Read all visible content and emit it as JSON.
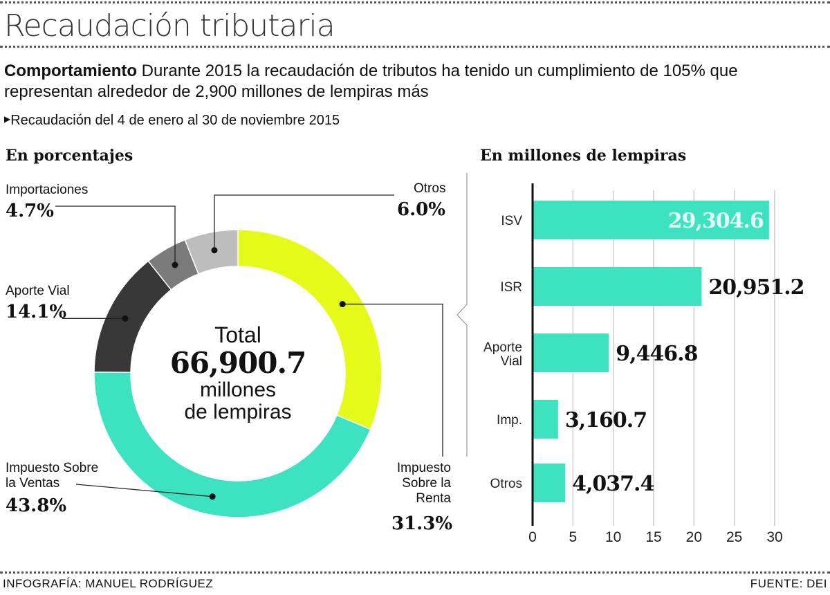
{
  "header": {
    "title": "Recaudación tributaria",
    "lede_bold": "Comportamiento",
    "lede_text": " Durante 2015 la recaudación de tributos ha tenido un cumplimiento de 105% que representan alrededor de 2,900 millones de lempiras más",
    "subtitle": "Recaudación del 4 de enero al 30 de noviembre 2015"
  },
  "chart_data": [
    {
      "type": "pie",
      "title": "En porcentajes",
      "center_label": {
        "line1": "Total",
        "value": "66,900.7",
        "line2": "millones",
        "line3": "de lempiras"
      },
      "slices": [
        {
          "label": "Impuesto Sobre la Renta",
          "label_lines": [
            "Impuesto",
            "Sobre la",
            "Renta"
          ],
          "value": 31.3,
          "display": "31.3%",
          "color": "#e4fa18"
        },
        {
          "label": "Impuesto Sobre la Ventas",
          "label_lines": [
            "Impuesto Sobre",
            "la Ventas"
          ],
          "value": 43.8,
          "display": "43.8%",
          "color": "#3de3c1"
        },
        {
          "label": "Aporte Vial",
          "label_lines": [
            "Aporte Vial"
          ],
          "value": 14.1,
          "display": "14.1%",
          "color": "#383838"
        },
        {
          "label": "Importaciones",
          "label_lines": [
            "Importaciones"
          ],
          "value": 4.7,
          "display": "4.7%",
          "color": "#7b7b7b"
        },
        {
          "label": "Otros",
          "label_lines": [
            "Otros"
          ],
          "value": 6.0,
          "display": "6.0%",
          "color": "#bdbdbd"
        }
      ]
    },
    {
      "type": "bar",
      "orientation": "horizontal",
      "title": "En millones de lempiras",
      "categories": [
        "ISV",
        "ISR",
        "Aporte Vial",
        "Imp.",
        "Otros"
      ],
      "values": [
        29304.6,
        20951.2,
        9446.8,
        3160.7,
        4037.4
      ],
      "data_labels": [
        "29,304.6",
        "20,951.2",
        "9,446.8",
        "3,160.7",
        "4,037.4"
      ],
      "xticks": [
        "0",
        "5",
        "10",
        "15",
        "20",
        "25",
        "30"
      ],
      "xlim": [
        0,
        30000
      ],
      "grid": true,
      "color": "#3de3c1"
    }
  ],
  "footer": {
    "credit": "INFOGRAFÍA: MANUEL RODRÍGUEZ",
    "source": "FUENTE: DEI"
  }
}
